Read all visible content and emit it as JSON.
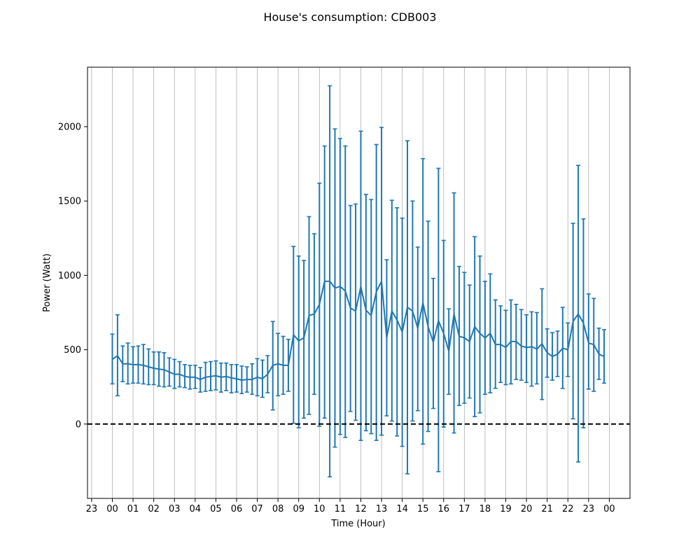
{
  "chart_data": {
    "type": "line",
    "title": "House's consumption: CDB003",
    "xlabel": "Time (Hour)",
    "ylabel": "Power (Watt)",
    "x_tick_labels": [
      "23",
      "00",
      "01",
      "02",
      "03",
      "04",
      "05",
      "06",
      "07",
      "08",
      "09",
      "10",
      "11",
      "12",
      "13",
      "14",
      "15",
      "16",
      "17",
      "18",
      "19",
      "20",
      "21",
      "22",
      "23",
      "00"
    ],
    "x_tick_hours": [
      -1,
      0,
      1,
      2,
      3,
      4,
      5,
      6,
      7,
      8,
      9,
      10,
      11,
      12,
      13,
      14,
      15,
      16,
      17,
      18,
      19,
      20,
      21,
      22,
      23,
      24
    ],
    "xlim_hours": [
      -1.2,
      25.0
    ],
    "y_ticks": [
      0,
      500,
      1000,
      1500,
      2000
    ],
    "y_tick_labels": [
      "0",
      "500",
      "1000",
      "1500",
      "2000"
    ],
    "ylim": [
      -500,
      2400
    ],
    "grid_x": true,
    "grid_y": false,
    "zero_line": {
      "y": 0,
      "style": "dashed",
      "color": "#000000"
    },
    "series": [
      {
        "color": "#1f77b4",
        "x_hours": [
          0.0,
          0.25,
          0.5,
          0.75,
          1.0,
          1.25,
          1.5,
          1.75,
          2.0,
          2.25,
          2.5,
          2.75,
          3.0,
          3.25,
          3.5,
          3.75,
          4.0,
          4.25,
          4.5,
          4.75,
          5.0,
          5.25,
          5.5,
          5.75,
          6.0,
          6.25,
          6.5,
          6.75,
          7.0,
          7.25,
          7.5,
          7.75,
          8.0,
          8.25,
          8.5,
          8.75,
          9.0,
          9.25,
          9.5,
          9.75,
          10.0,
          10.25,
          10.5,
          10.75,
          11.0,
          11.25,
          11.5,
          11.75,
          12.0,
          12.25,
          12.5,
          12.75,
          13.0,
          13.25,
          13.5,
          13.75,
          14.0,
          14.25,
          14.5,
          14.75,
          15.0,
          15.25,
          15.5,
          15.75,
          16.0,
          16.25,
          16.5,
          16.75,
          17.0,
          17.25,
          17.5,
          17.75,
          18.0,
          18.25,
          18.5,
          18.75,
          19.0,
          19.25,
          19.5,
          19.75,
          20.0,
          20.25,
          20.5,
          20.75,
          21.0,
          21.25,
          21.5,
          21.75,
          22.0,
          22.25,
          22.5,
          22.75,
          23.0,
          23.25,
          23.5,
          23.75
        ],
        "mean": [
          435,
          460,
          405,
          405,
          400,
          400,
          395,
          385,
          375,
          370,
          365,
          350,
          335,
          335,
          320,
          315,
          315,
          300,
          315,
          320,
          325,
          315,
          320,
          310,
          305,
          295,
          300,
          300,
          315,
          305,
          335,
          395,
          405,
          395,
          395,
          600,
          560,
          580,
          730,
          740,
          805,
          960,
          960,
          915,
          925,
          895,
          780,
          760,
          925,
          765,
          730,
          890,
          960,
          580,
          760,
          700,
          620,
          785,
          760,
          645,
          815,
          655,
          550,
          695,
          610,
          490,
          740,
          590,
          580,
          555,
          655,
          610,
          580,
          610,
          535,
          535,
          515,
          555,
          555,
          525,
          515,
          520,
          505,
          540,
          480,
          455,
          470,
          510,
          500,
          690,
          740,
          680,
          545,
          535,
          470,
          455
        ],
        "upper": [
          605,
          735,
          525,
          545,
          520,
          525,
          535,
          505,
          485,
          485,
          480,
          445,
          435,
          420,
          400,
          395,
          395,
          380,
          415,
          420,
          425,
          410,
          410,
          400,
          400,
          390,
          385,
          405,
          440,
          430,
          460,
          690,
          610,
          590,
          570,
          1195,
          1130,
          1100,
          1395,
          1280,
          1620,
          1870,
          2275,
          1985,
          1920,
          1870,
          1470,
          1480,
          1970,
          1545,
          1510,
          1880,
          1995,
          1105,
          1505,
          1455,
          1385,
          1905,
          1500,
          1190,
          1785,
          1365,
          980,
          1720,
          1235,
          775,
          1555,
          1060,
          1020,
          935,
          1260,
          1130,
          960,
          1010,
          835,
          795,
          765,
          835,
          805,
          770,
          735,
          755,
          750,
          910,
          640,
          615,
          625,
          785,
          680,
          1350,
          1740,
          1380,
          875,
          845,
          645,
          635
        ],
        "lower": [
          270,
          190,
          285,
          270,
          275,
          275,
          270,
          265,
          265,
          255,
          250,
          255,
          240,
          250,
          245,
          235,
          240,
          215,
          220,
          225,
          230,
          215,
          225,
          210,
          215,
          205,
          215,
          200,
          190,
          180,
          210,
          95,
          190,
          200,
          220,
          5,
          -25,
          40,
          65,
          200,
          -15,
          40,
          -355,
          -155,
          -70,
          -90,
          85,
          25,
          -110,
          -45,
          -65,
          -110,
          -75,
          55,
          20,
          -80,
          -150,
          -335,
          20,
          90,
          -135,
          -50,
          105,
          -320,
          -20,
          200,
          -60,
          125,
          140,
          175,
          50,
          75,
          200,
          210,
          240,
          280,
          265,
          270,
          300,
          295,
          280,
          255,
          270,
          165,
          315,
          295,
          320,
          240,
          320,
          35,
          -255,
          -25,
          235,
          220,
          300,
          275
        ]
      }
    ]
  }
}
